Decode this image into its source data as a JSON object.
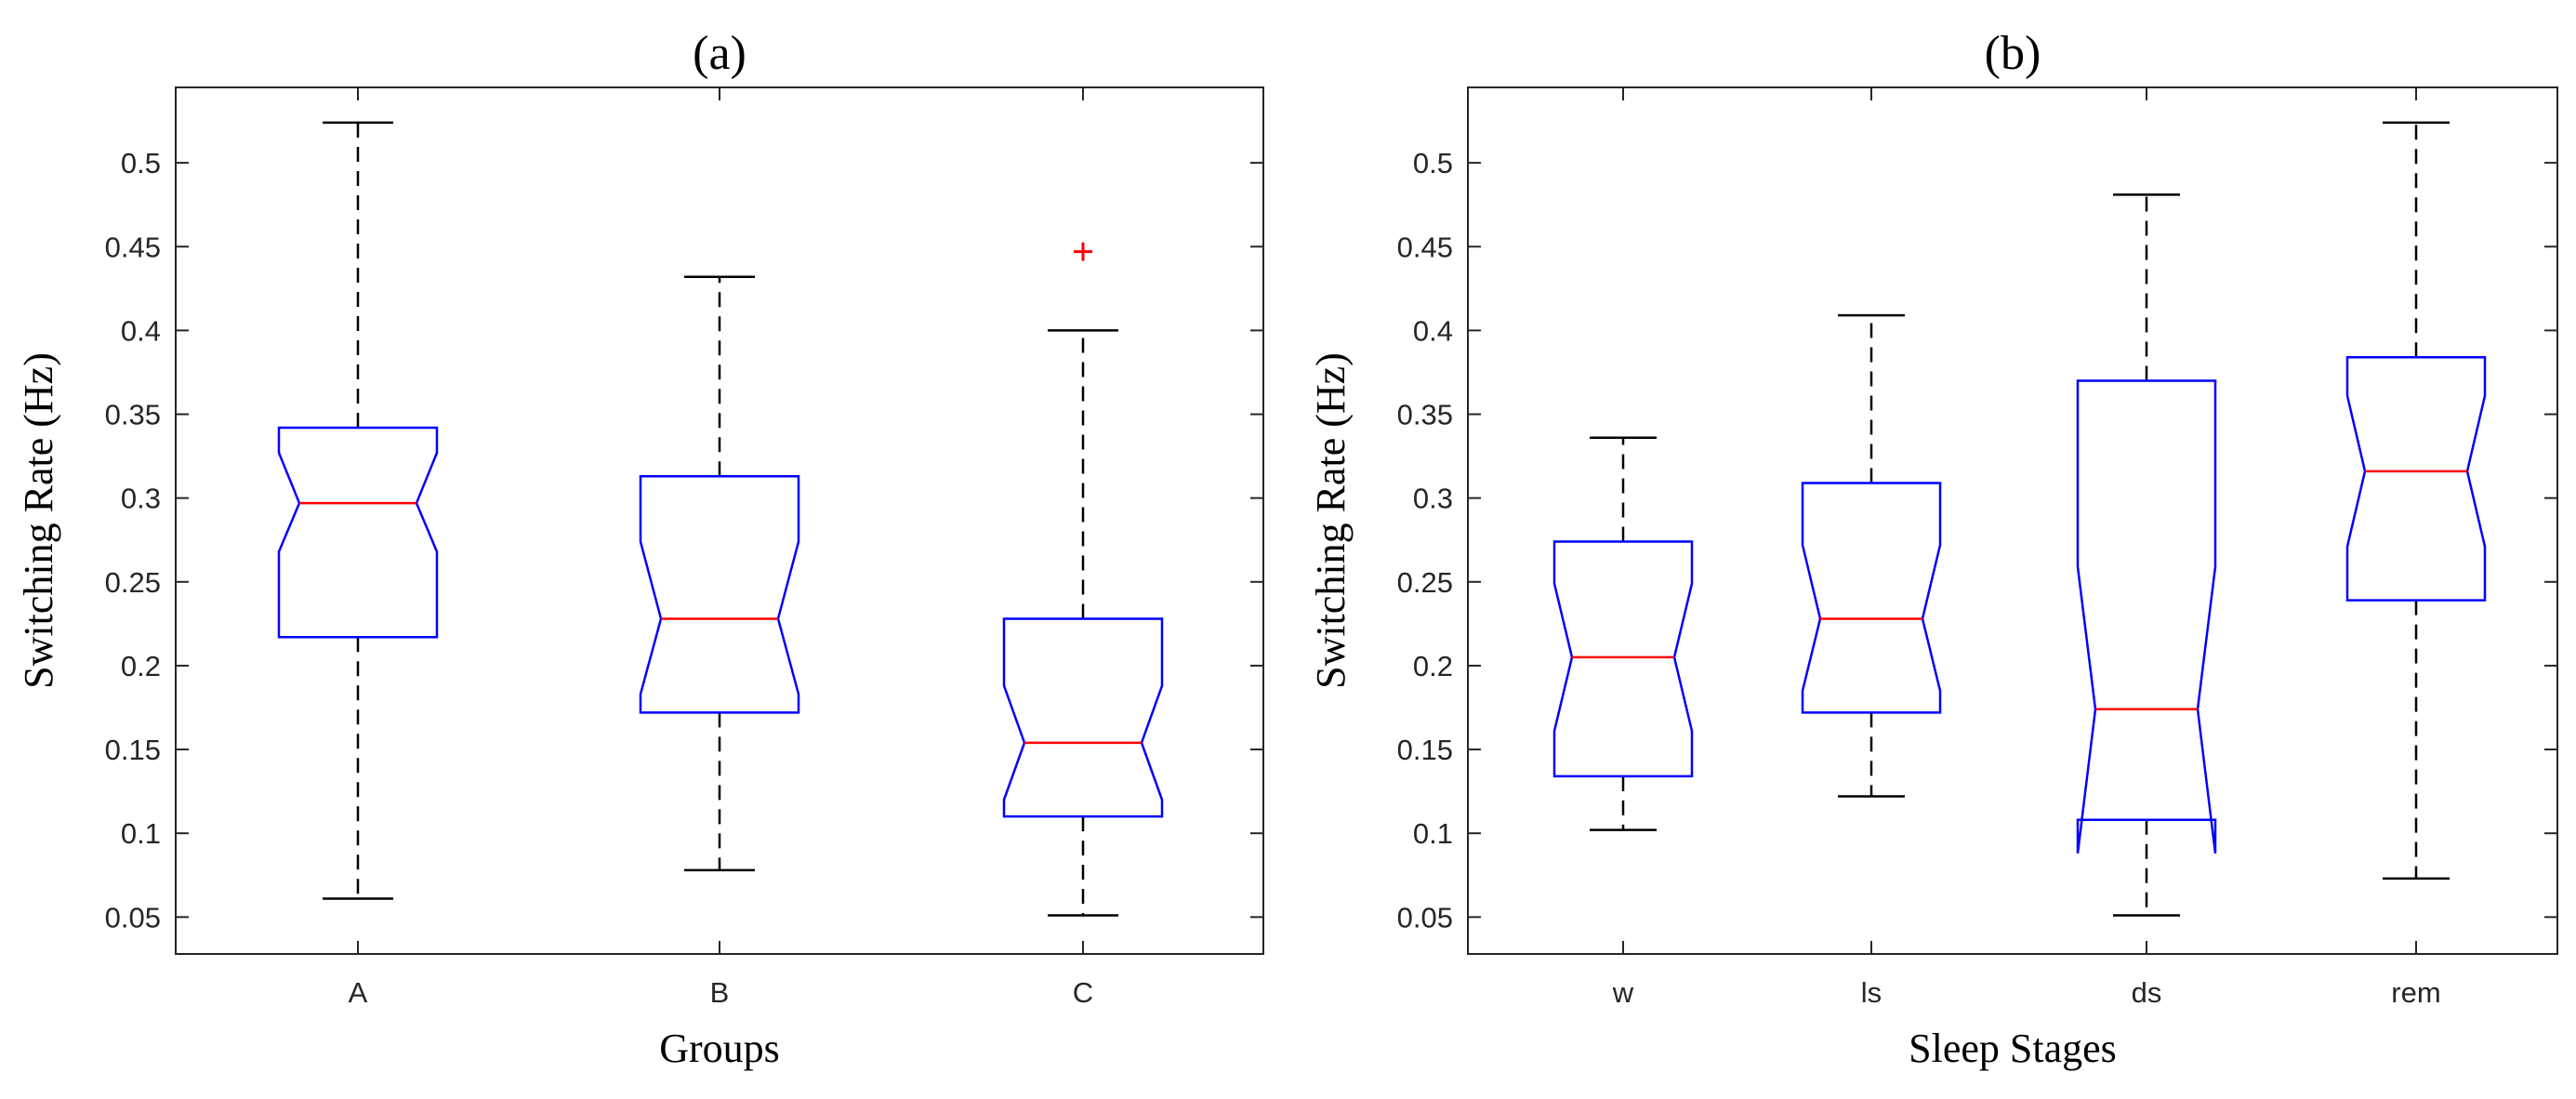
{
  "chart_data": [
    {
      "type": "boxplot",
      "notched": true,
      "title": "(a)",
      "xlabel": "Groups",
      "ylabel": "Switching Rate (Hz)",
      "ylim": [
        0.028,
        0.545
      ],
      "yticks": [
        0.05,
        0.1,
        0.15,
        0.2,
        0.25,
        0.3,
        0.35,
        0.4,
        0.45,
        0.5
      ],
      "ytick_labels": [
        "0.05",
        "0.1",
        "0.15",
        "0.2",
        "0.25",
        "0.3",
        "0.35",
        "0.4",
        "0.45",
        "0.5"
      ],
      "categories": [
        "A",
        "B",
        "C"
      ],
      "boxes": [
        {
          "label": "A",
          "whisker_low": 0.061,
          "q1": 0.217,
          "notch_low": 0.268,
          "median": 0.297,
          "notch_high": 0.327,
          "q3": 0.342,
          "whisker_high": 0.524,
          "outliers": []
        },
        {
          "label": "B",
          "whisker_low": 0.078,
          "q1": 0.172,
          "notch_low": 0.183,
          "median": 0.228,
          "notch_high": 0.274,
          "q3": 0.313,
          "whisker_high": 0.432,
          "outliers": []
        },
        {
          "label": "C",
          "whisker_low": 0.051,
          "q1": 0.11,
          "notch_low": 0.12,
          "median": 0.154,
          "notch_high": 0.188,
          "q3": 0.228,
          "whisker_high": 0.4,
          "outliers": [
            0.447
          ]
        }
      ],
      "colors": {
        "box": "#0000ff",
        "median": "#ff0000",
        "whisker": "#000000",
        "outlier": "#ff0000",
        "axes": "#262626"
      }
    },
    {
      "type": "boxplot",
      "notched": true,
      "title": "(b)",
      "xlabel": "Sleep Stages",
      "ylabel": "Switching Rate (Hz)",
      "ylim": [
        0.028,
        0.545
      ],
      "yticks": [
        0.05,
        0.1,
        0.15,
        0.2,
        0.25,
        0.3,
        0.35,
        0.4,
        0.45,
        0.5
      ],
      "ytick_labels": [
        "0.05",
        "0.1",
        "0.15",
        "0.2",
        "0.25",
        "0.3",
        "0.35",
        "0.4",
        "0.45",
        "0.5"
      ],
      "categories": [
        "w",
        "ls",
        "ds",
        "rem"
      ],
      "boxes": [
        {
          "label": "w",
          "whisker_low": 0.102,
          "q1": 0.134,
          "notch_low": 0.161,
          "median": 0.205,
          "notch_high": 0.249,
          "q3": 0.274,
          "whisker_high": 0.336,
          "outliers": []
        },
        {
          "label": "ls",
          "whisker_low": 0.122,
          "q1": 0.172,
          "notch_low": 0.185,
          "median": 0.228,
          "notch_high": 0.272,
          "q3": 0.309,
          "whisker_high": 0.409,
          "outliers": []
        },
        {
          "label": "ds",
          "whisker_low": 0.051,
          "q1": 0.108,
          "notch_low": 0.088,
          "median": 0.174,
          "notch_high": 0.259,
          "q3": 0.37,
          "whisker_high": 0.481,
          "outliers": []
        },
        {
          "label": "rem",
          "whisker_low": 0.073,
          "q1": 0.239,
          "notch_low": 0.271,
          "median": 0.316,
          "notch_high": 0.361,
          "q3": 0.384,
          "whisker_high": 0.524,
          "outliers": []
        }
      ],
      "colors": {
        "box": "#0000ff",
        "median": "#ff0000",
        "whisker": "#000000",
        "outlier": "#ff0000",
        "axes": "#262626"
      }
    }
  ]
}
